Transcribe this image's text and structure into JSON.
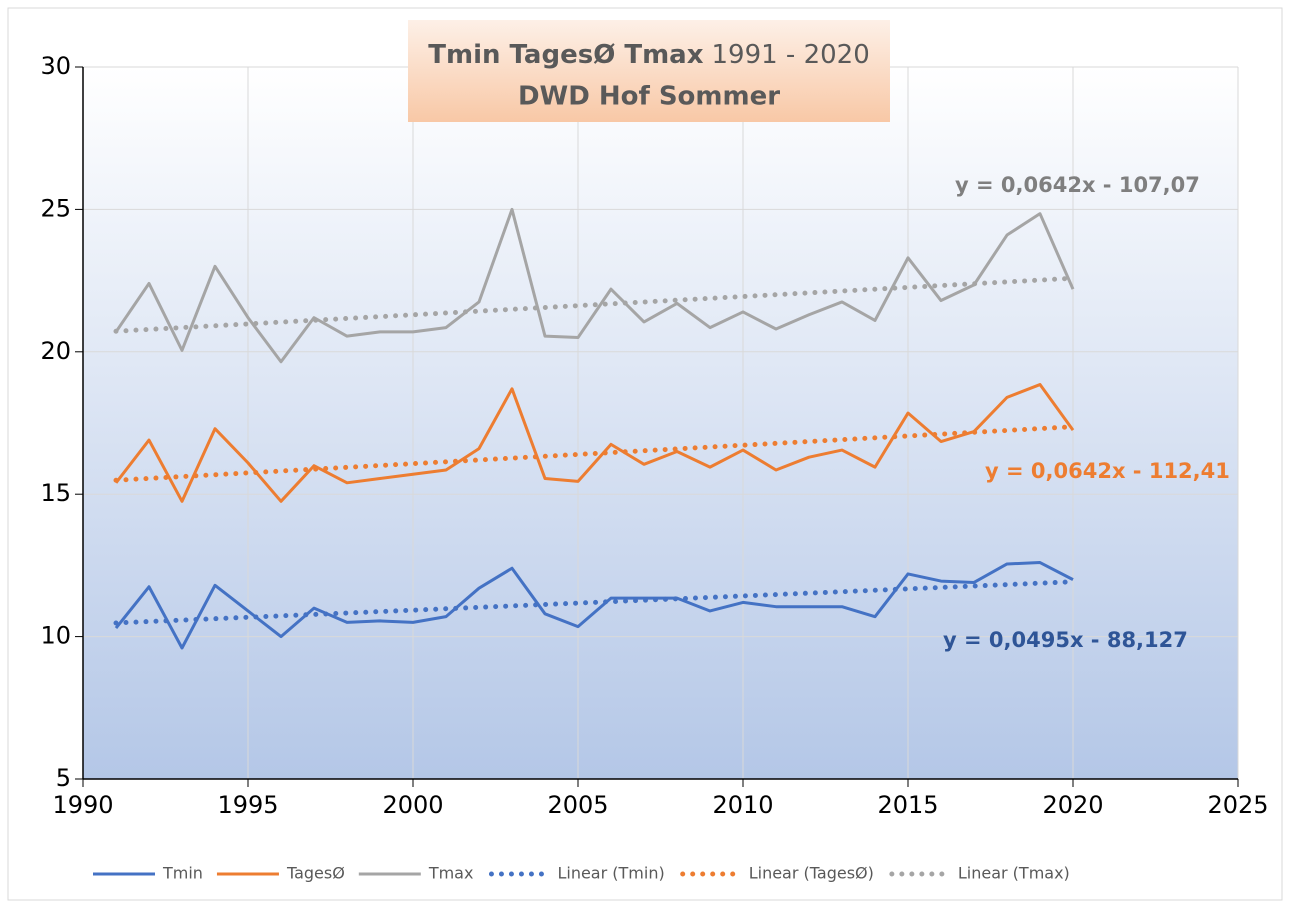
{
  "chart_data": {
    "type": "line",
    "title": "Tmin TagesØ Tmax",
    "title_period": "1991 - 2020",
    "subtitle": "DWD Hof Sommer",
    "x": [
      1991,
      1992,
      1993,
      1994,
      1995,
      1996,
      1997,
      1998,
      1999,
      2000,
      2001,
      2002,
      2003,
      2004,
      2005,
      2006,
      2007,
      2008,
      2009,
      2010,
      2011,
      2012,
      2013,
      2014,
      2015,
      2016,
      2017,
      2018,
      2019,
      2020
    ],
    "xlim": [
      1990,
      2025
    ],
    "xticks": [
      1990,
      1995,
      2000,
      2005,
      2010,
      2015,
      2020,
      2025
    ],
    "ylim": [
      5,
      30
    ],
    "yticks": [
      5,
      10,
      15,
      20,
      25,
      30
    ],
    "grid": true,
    "legend": "bottom",
    "series": [
      {
        "name": "Tmin",
        "color": "#4472c4",
        "values": [
          10.3,
          11.75,
          9.6,
          11.8,
          10.9,
          10.0,
          11.0,
          10.5,
          10.55,
          10.5,
          10.7,
          11.7,
          12.4,
          10.8,
          10.35,
          11.35,
          11.35,
          11.35,
          10.9,
          11.2,
          11.05,
          11.05,
          11.05,
          10.7,
          12.2,
          11.95,
          11.9,
          12.55,
          12.6,
          12.0
        ],
        "trendline": {
          "name": "Linear (Tmin)",
          "equation": "y = 0,0495x - 88,127",
          "label_color": "#2f5597"
        }
      },
      {
        "name": "TagesØ",
        "color": "#ed7d31",
        "values": [
          15.4,
          16.9,
          14.75,
          17.3,
          16.1,
          14.75,
          16.0,
          15.4,
          15.55,
          15.7,
          15.85,
          16.6,
          18.7,
          15.55,
          15.45,
          16.75,
          16.05,
          16.5,
          15.95,
          16.55,
          15.85,
          16.3,
          16.55,
          15.95,
          17.85,
          16.85,
          17.2,
          18.4,
          18.85,
          17.25
        ],
        "trendline": {
          "name": "Linear (TagesØ)",
          "equation": "y = 0,0642x - 112,41",
          "label_color": "#ed7d31"
        }
      },
      {
        "name": "Tmax",
        "color": "#a5a5a5",
        "values": [
          20.7,
          22.4,
          20.05,
          23.0,
          21.2,
          19.65,
          21.2,
          20.55,
          20.7,
          20.7,
          20.85,
          21.75,
          25.0,
          20.55,
          20.5,
          22.2,
          21.05,
          21.7,
          20.85,
          21.4,
          20.8,
          21.3,
          21.75,
          21.1,
          23.3,
          21.8,
          22.35,
          24.1,
          24.85,
          22.2
        ],
        "trendline": {
          "name": "Linear (Tmax)",
          "equation": "y = 0,0642x - 107,07",
          "label_color": "#7f7f7f"
        }
      }
    ]
  }
}
